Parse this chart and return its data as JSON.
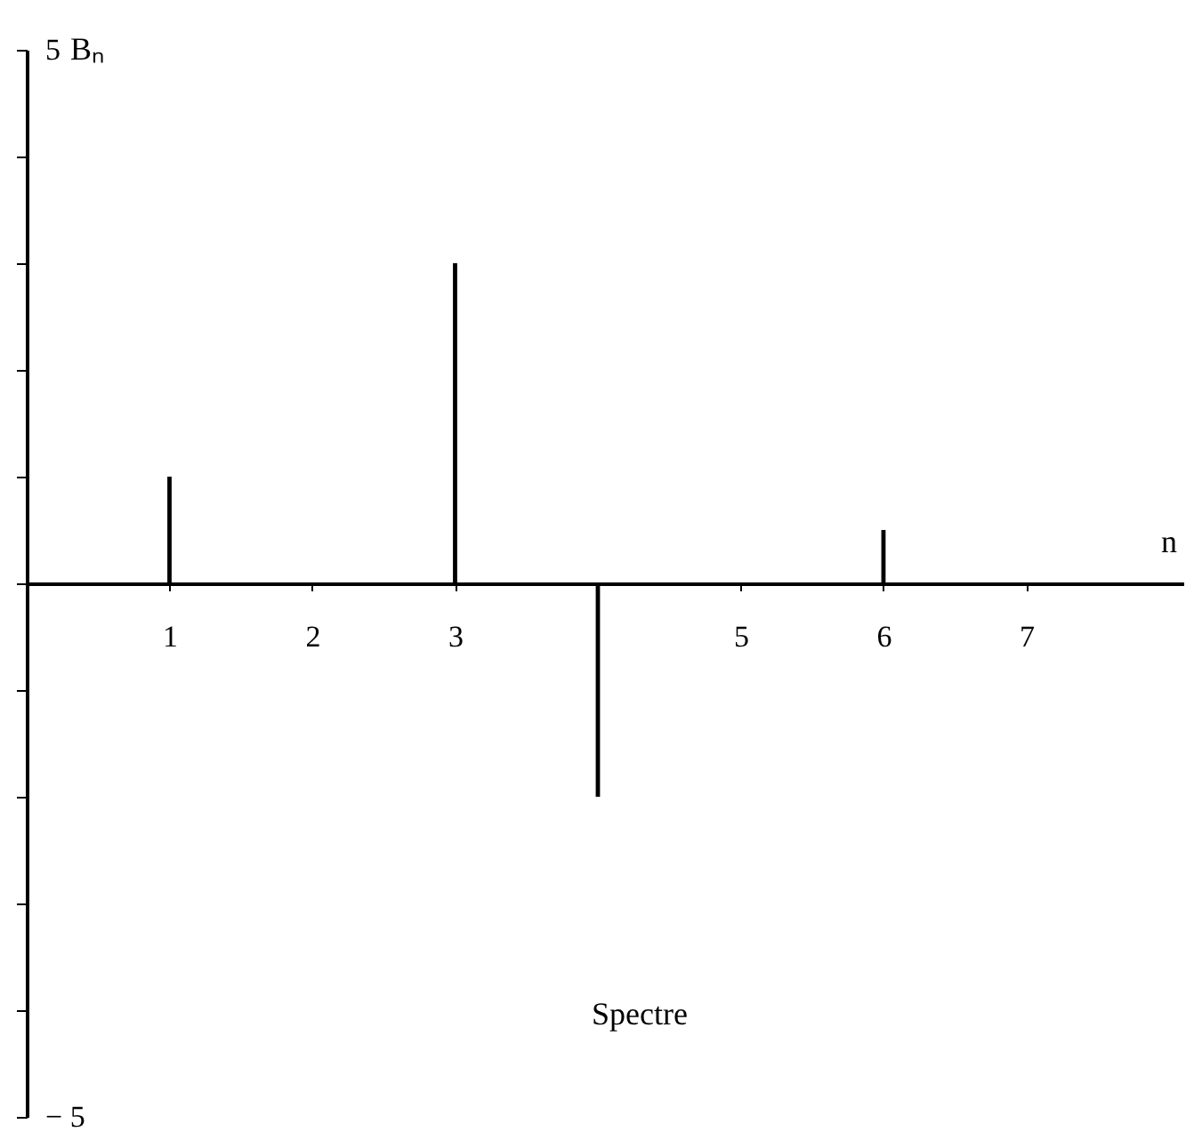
{
  "chart_data": {
    "type": "bar",
    "xlabel": "n",
    "ylabel": "Bₙ",
    "color": "#000000",
    "x": [
      1,
      2,
      3,
      4,
      5,
      6,
      7
    ],
    "values": [
      1,
      0,
      3,
      -2,
      0,
      0.5,
      0
    ],
    "xlim": [
      0,
      8.1
    ],
    "xticks": [
      1,
      2,
      3,
      {
        "value": 4,
        "label": null
      },
      5,
      6,
      7
    ],
    "ylim": [
      -5,
      5
    ],
    "yticks": [
      {
        "value": -5,
        "label": "− 5"
      },
      {
        "value": -4,
        "label": null
      },
      {
        "value": -3,
        "label": null
      },
      {
        "value": -2,
        "label": null
      },
      {
        "value": -1,
        "label": null
      },
      {
        "value": 0,
        "label": null
      },
      {
        "value": 1,
        "label": null
      },
      {
        "value": 2,
        "label": null
      },
      {
        "value": 3,
        "label": null
      },
      {
        "value": 4,
        "label": null
      },
      {
        "value": 5,
        "label": "5"
      }
    ],
    "grid": false,
    "annotations": [
      "Spectre"
    ]
  }
}
